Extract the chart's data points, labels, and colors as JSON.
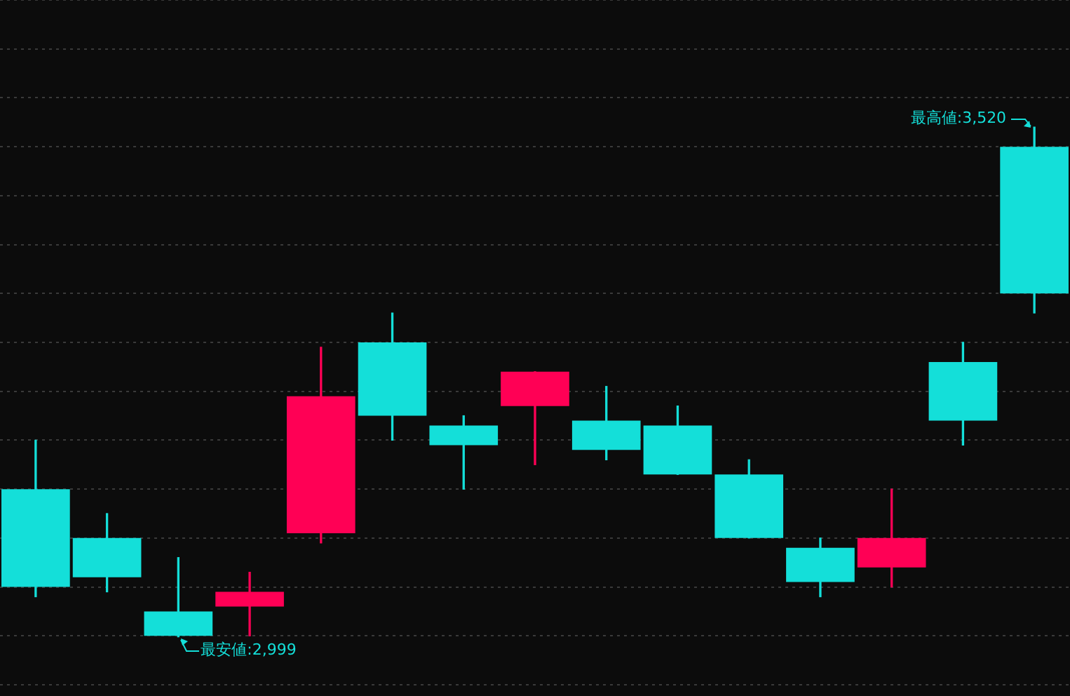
{
  "chart_data": {
    "type": "candlestick",
    "categories": [
      null,
      null,
      null,
      null,
      null,
      null,
      null,
      null,
      null,
      null,
      null,
      null,
      null,
      null,
      null
    ],
    "ohlc": [
      [
        3050,
        3200,
        3040,
        3150
      ],
      [
        3060,
        3125,
        3045,
        3100
      ],
      [
        3000,
        3080,
        2999,
        3025
      ],
      [
        3045,
        3065,
        3000,
        3030
      ],
      [
        3245,
        3295,
        3095,
        3105
      ],
      [
        3225,
        3330,
        3200,
        3300
      ],
      [
        3195,
        3225,
        3150,
        3215
      ],
      [
        3270,
        3270,
        3175,
        3235
      ],
      [
        3190,
        3255,
        3180,
        3220
      ],
      [
        3165,
        3235,
        3165,
        3215
      ],
      [
        3100,
        3180,
        3100,
        3165
      ],
      [
        3055,
        3100,
        3040,
        3090
      ],
      [
        3100,
        3150,
        3050,
        3070
      ],
      [
        3220,
        3300,
        3195,
        3280
      ],
      [
        3350,
        3520,
        3330,
        3500
      ]
    ],
    "colors": [
      "#14dfd9",
      "#14dfd9",
      "#14dfd9",
      "#ff0055",
      "#ff0055",
      "#14dfd9",
      "#14dfd9",
      "#ff0055",
      "#14dfd9",
      "#14dfd9",
      "#14dfd9",
      "#14dfd9",
      "#ff0055",
      "#14dfd9",
      "#14dfd9"
    ],
    "yticks": [
      {
        "value": 2950,
        "label": null
      },
      {
        "value": 3000,
        "label": null
      },
      {
        "value": 3050,
        "label": null
      },
      {
        "value": 3100,
        "label": null
      },
      {
        "value": 3150,
        "label": null
      },
      {
        "value": 3200,
        "label": null
      },
      {
        "value": 3250,
        "label": null
      },
      {
        "value": 3300,
        "label": null
      },
      {
        "value": 3350,
        "label": null
      },
      {
        "value": 3400,
        "label": null
      },
      {
        "value": 3450,
        "label": null
      },
      {
        "value": 3500,
        "label": null
      },
      {
        "value": 3550,
        "label": null
      },
      {
        "value": 3600,
        "label": null
      },
      {
        "value": 3650,
        "label": null
      }
    ],
    "grid": "y",
    "legend": false,
    "annotations": [
      "最高値:3,520",
      "最安値:2,999"
    ]
  }
}
